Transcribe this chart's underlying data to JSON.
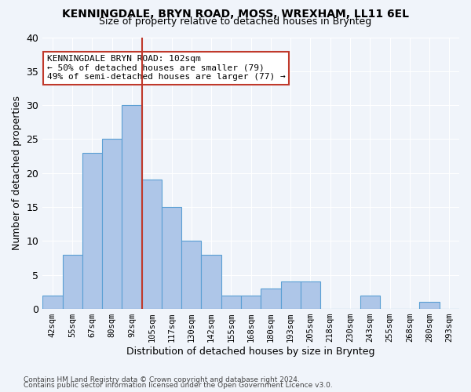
{
  "title1": "KENNINGDALE, BRYN ROAD, MOSS, WREXHAM, LL11 6EL",
  "title2": "Size of property relative to detached houses in Brynteg",
  "xlabel": "Distribution of detached houses by size in Brynteg",
  "ylabel": "Number of detached properties",
  "footer1": "Contains HM Land Registry data © Crown copyright and database right 2024.",
  "footer2": "Contains public sector information licensed under the Open Government Licence v3.0.",
  "annotation_line1": "KENNINGDALE BRYN ROAD: 102sqm",
  "annotation_line2": "← 50% of detached houses are smaller (79)",
  "annotation_line3": "49% of semi-detached houses are larger (77) →",
  "bin_labels": [
    "42sqm",
    "55sqm",
    "67sqm",
    "80sqm",
    "92sqm",
    "105sqm",
    "117sqm",
    "130sqm",
    "142sqm",
    "155sqm",
    "168sqm",
    "180sqm",
    "193sqm",
    "205sqm",
    "218sqm",
    "230sqm",
    "243sqm",
    "255sqm",
    "268sqm",
    "280sqm",
    "293sqm"
  ],
  "bar_values": [
    2,
    8,
    23,
    25,
    30,
    19,
    15,
    10,
    8,
    2,
    2,
    3,
    4,
    4,
    0,
    0,
    2,
    0,
    0,
    1,
    0
  ],
  "bar_color": "#aec6e8",
  "bar_edge_color": "#5a9fd4",
  "vline_x": 4.5,
  "vline_color": "#c0392b",
  "ylim": [
    0,
    40
  ],
  "yticks": [
    0,
    5,
    10,
    15,
    20,
    25,
    30,
    35,
    40
  ],
  "annotation_box_color": "#ffffff",
  "annotation_box_edge": "#c0392b",
  "background_color": "#f0f4fa"
}
